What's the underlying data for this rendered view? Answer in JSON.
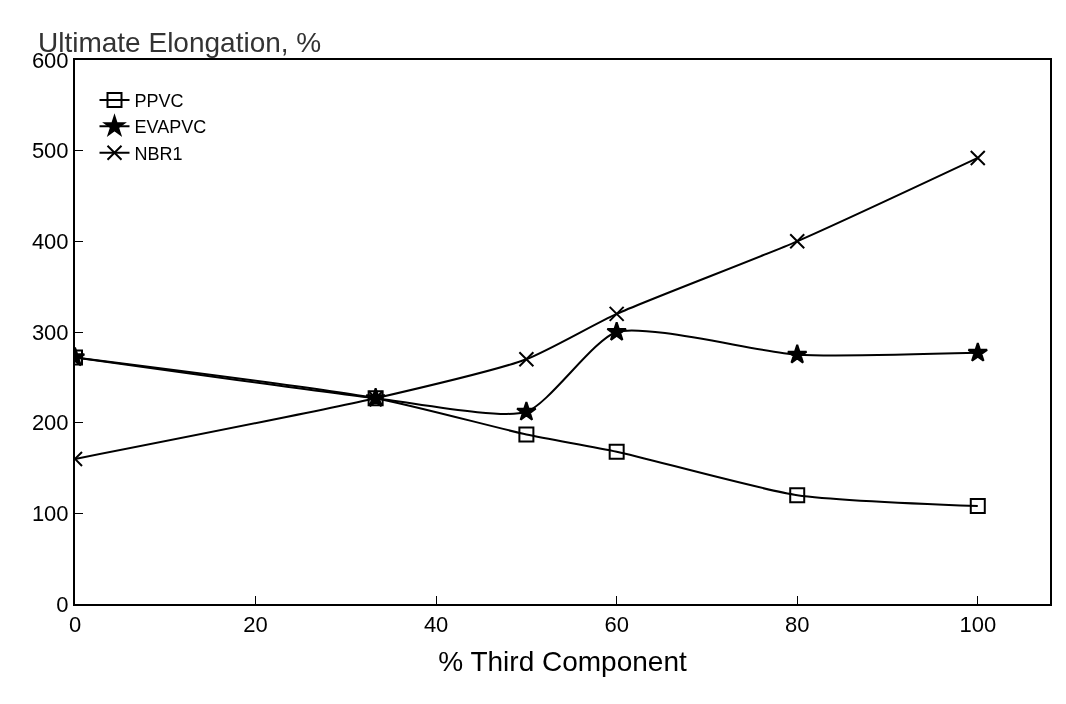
{
  "chart_data": {
    "type": "line",
    "ylabel": "Ultimate Elongation, %",
    "xlabel": "% Third Component",
    "x": [
      0,
      33.3,
      50,
      60,
      80,
      100
    ],
    "series": [
      {
        "name": "PPVC",
        "color": "#000000",
        "marker": "square",
        "values": [
          272,
          227,
          187,
          168,
          120,
          108
        ]
      },
      {
        "name": "EVAPVC",
        "color": "#000000",
        "marker": "star",
        "values": [
          272,
          227,
          212,
          300,
          275,
          277
        ]
      },
      {
        "name": "NBR1",
        "color": "#000000",
        "marker": "cross",
        "values": [
          160,
          227,
          270,
          320,
          400,
          492
        ]
      }
    ],
    "xlim": [
      0,
      108
    ],
    "xticks": [
      0,
      20,
      40,
      60,
      80,
      100
    ],
    "ylim": [
      0,
      600
    ],
    "yticks": [
      0,
      100,
      200,
      300,
      400,
      500,
      600
    ],
    "legend": "top left",
    "line_style": "solid"
  }
}
